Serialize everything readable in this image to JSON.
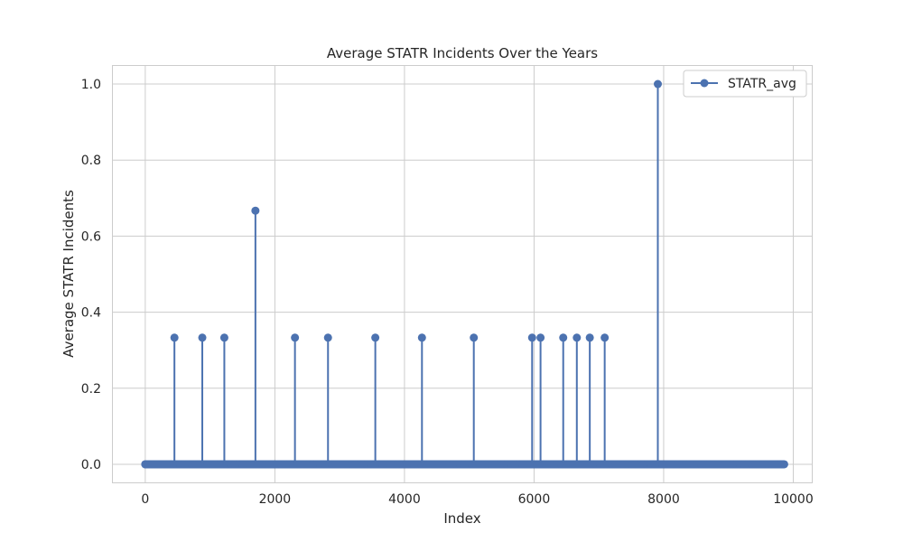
{
  "chart_data": {
    "type": "line",
    "title": "Average STATR Incidents Over the Years",
    "xlabel": "Index",
    "ylabel": "Average STATR Incidents",
    "xlim": [
      -500,
      10300
    ],
    "ylim": [
      -0.05,
      1.05
    ],
    "x_ticks": [
      0,
      2000,
      4000,
      6000,
      8000,
      10000
    ],
    "x_tick_labels": [
      "0",
      "2000",
      "4000",
      "6000",
      "8000",
      "10000"
    ],
    "y_ticks": [
      0.0,
      0.2,
      0.4,
      0.6,
      0.8,
      1.0
    ],
    "y_tick_labels": [
      "0.0",
      "0.2",
      "0.4",
      "0.6",
      "0.8",
      "1.0"
    ],
    "grid": true,
    "legend_position": "top-right",
    "x_range": [
      0,
      9860
    ],
    "baseline_value": 0.0,
    "series": [
      {
        "name": "STATR_avg",
        "color": "#4c72b0",
        "marker": "circle",
        "nonzero_points": [
          {
            "x": 450,
            "y": 0.333
          },
          {
            "x": 880,
            "y": 0.333
          },
          {
            "x": 1220,
            "y": 0.333
          },
          {
            "x": 1700,
            "y": 0.667
          },
          {
            "x": 2310,
            "y": 0.333
          },
          {
            "x": 2820,
            "y": 0.333
          },
          {
            "x": 3550,
            "y": 0.333
          },
          {
            "x": 4270,
            "y": 0.333
          },
          {
            "x": 5070,
            "y": 0.333
          },
          {
            "x": 5970,
            "y": 0.333
          },
          {
            "x": 6100,
            "y": 0.333
          },
          {
            "x": 6450,
            "y": 0.333
          },
          {
            "x": 6660,
            "y": 0.333
          },
          {
            "x": 6860,
            "y": 0.333
          },
          {
            "x": 7090,
            "y": 0.333
          },
          {
            "x": 7910,
            "y": 1.0
          }
        ]
      }
    ]
  }
}
